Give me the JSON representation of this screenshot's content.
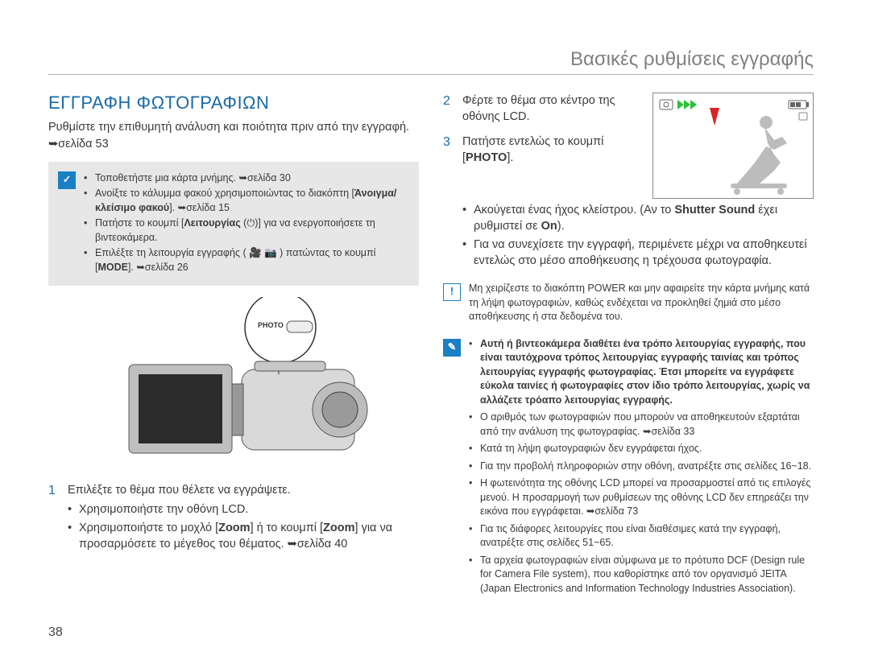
{
  "page": {
    "running_header": "Βασικές ρυθμίσεις εγγραφής",
    "number": "38"
  },
  "colors": {
    "accent": "#1a6aa8",
    "icon_blue": "#1a7fc4",
    "gray_box": "#e7e7e7",
    "text": "#3a3a3a",
    "header_gray": "#808080",
    "rule": "#b0b0b0"
  },
  "left": {
    "title": "ΕΓΓΡΑΦΗ ΦΩΤΟΓΡΑΦΙΩΝ",
    "intro": "Ρυθμίστε την επιθυμητή ανάλυση και ποιότητα πριν από την εγγραφή.",
    "pageref": "➥σελίδα 53",
    "graybox_icon": "✓",
    "graybox_items": [
      "Τοποθετήστε μια κάρτα μνήμης. ➥σελίδα 30",
      "Ανοίξτε το κάλυμμα φακού χρησιμοποιώντας το διακόπτη [<b>Άνοιγμα/κλείσιμο φακού</b>]. ➥σελίδα 15",
      "Πατήστε το κουμπί [<b>Λειτουργίας</b> (⏻)] για να ενεργοποιήσετε τη βιντεοκάμερα.",
      "Επιλέξτε τη λειτουργία εγγραφής ( 🎥 📷 ) πατώντας το κουμπί [<b>MODE</b>]. ➥σελίδα 26"
    ],
    "illus_label": "PHOTO",
    "step1_num": "1",
    "step1_text": "Επιλέξτε το θέμα που θέλετε να εγγράψετε.",
    "step1_bullets": [
      "Χρησιμοποιήστε την οθόνη LCD.",
      "Χρησιμοποιήστε το μοχλό [<b>Zoom</b>] ή το κουμπί [<b>Zoom</b>] για να προσαρμόσετε το μέγεθος του θέματος. ➥σελίδα 40"
    ]
  },
  "right": {
    "step2_num": "2",
    "step2_text": "Φέρτε το θέμα στο κέντρο της οθόνης LCD.",
    "step3_num": "3",
    "step3_text": "Πατήστε εντελώς το κουμπί [<b>PHOTO</b>].",
    "step3_bullets": [
      "Ακούγεται ένας ήχος κλείστρου. (Αν το <b>Shutter Sound</b> έχει ρυθμιστεί σε <b>On</b>).",
      "Για να συνεχίσετε την εγγραφή, περιμένετε μέχρι να αποθηκευτεί εντελώς στο μέσο αποθήκευσης η τρέχουσα φωτογραφία."
    ],
    "lcd_icons": {
      "camera": "📷",
      "play": "▶▶▶",
      "battery": "▮▮▯"
    },
    "warn_icon": "!",
    "warn_text": "Μη χειρίζεστε το διακόπτη POWER και μην αφαιρείτε την κάρτα μνήμης κατά τη λήψη φωτογραφιών, καθώς ενδέχεται να προκληθεί ζημιά στο μέσο αποθήκευσης ή στα δεδομένα του.",
    "info_icon": "✎",
    "info_bullets": [
      "<b>Αυτή ή βιντεοκάμερα διαθέτει ένα τρόπο λειτουργίας εγγραφής, που είναι ταυτόχρονα τρόπος λειτουργίας εγγραφής ταινίας και τρόπος λειτουργίας εγγραφής φωτογραφίας. Έτσι μπορείτε να εγγράφετε εύκολα ταινίες ή φωτογραφίες στον ίδιο τρόπο λειτουργίας, χωρίς να αλλάζετε τρόαπο λειτουργίας εγγραφής.</b>",
      "Ο αριθμός των φωτογραφιών που μπορούν να αποθηκευτούν εξαρτάται από την ανάλυση της φωτογραφίας. ➥σελίδα 33",
      "Κατά τη λήψη φωτογραφιών δεν εγγράφεται ήχος.",
      "Για την προβολή πληροφοριών στην οθόνη, ανατρέξτε στις σελίδες 16~18.",
      "Η φωτεινότητα της οθόνης LCD μπορεί να προσαρμοστεί από τις επιλογές μενού. Η προσαρμογή των ρυθμίσεων της οθόνης LCD δεν επηρεάζει την εικόνα που εγγράφεται. ➥σελίδα 73",
      "Για τις διάφορες λειτουργίες που είναι διαθέσιμες κατά την εγγραφή, ανατρέξτε στις σελίδες 51~65.",
      "Τα αρχεία φωτογραφιών είναι σύμφωνα με το πρότυπο DCF (Design rule for Camera File system), που καθορίστηκε από τον οργανισμό JEITA (Japan Electronics and Information Technology Industries Association)."
    ]
  }
}
